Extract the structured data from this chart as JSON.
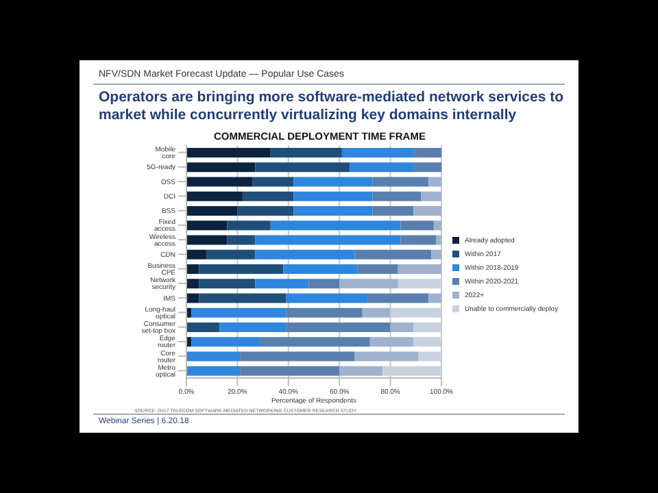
{
  "chart_data": {
    "type": "bar",
    "orientation": "horizontal",
    "stacked": true,
    "subtitle": "NFV/SDN Market Forecast Update — Popular Use Cases",
    "title": "COMMERCIAL DEPLOYMENT TIME FRAME",
    "annotations": [
      "Operators are bringing more software-mediated network services to market while concurrently virtualizing key domains internally",
      "SOURCE: 2H17 TELECOM SOFTWARE-MEDIATED NETWORKING CUSTOMER RESEARCH STUDY",
      "Webinar Series | 6.20.18"
    ],
    "xlabel": "Percentage of Respondents",
    "categories": [
      "Mobile core",
      "5G-ready",
      "OSS",
      "DCI",
      "BSS",
      "Fixed access",
      "Wireless access",
      "CDN",
      "Business CPE",
      "Network security",
      "IMS",
      "Long-haul optical",
      "Consumer set-top box",
      "Edge router",
      "Core router",
      "Metro optical"
    ],
    "series": [
      {
        "name": "Already adopted",
        "color": "#0c2340",
        "values": [
          33,
          27,
          26,
          22,
          20,
          16,
          16,
          8,
          5,
          5,
          5,
          2,
          0,
          2,
          0,
          0
        ]
      },
      {
        "name": "Within 2017",
        "color": "#1f4e79",
        "values": [
          28,
          37,
          16,
          20,
          22,
          17,
          11,
          19,
          33,
          22,
          34,
          0,
          13,
          0,
          0,
          0
        ]
      },
      {
        "name": "Within 2018-2019",
        "color": "#2e86de",
        "values": [
          28,
          25,
          31,
          31,
          31,
          51,
          57,
          39,
          29,
          21,
          32,
          37,
          26,
          27,
          21,
          21
        ]
      },
      {
        "name": "Within 2020-2021",
        "color": "#5a7fae",
        "values": [
          11,
          11,
          22,
          19,
          16,
          13,
          14,
          30,
          16,
          12,
          24,
          30,
          41,
          43,
          45,
          39
        ]
      },
      {
        "name": "2022+",
        "color": "#9fb2cd",
        "values": [
          0,
          0,
          5,
          8,
          11,
          3,
          2,
          4,
          17,
          23,
          5,
          11,
          9,
          17,
          25,
          17
        ]
      },
      {
        "name": "Unable to commercially deploy",
        "color": "#c8d2df",
        "values": [
          0,
          0,
          0,
          0,
          0,
          0,
          0,
          0,
          0,
          17,
          0,
          20,
          11,
          11,
          9,
          23
        ]
      }
    ],
    "xlim": [
      0,
      100
    ],
    "xticks": [
      {
        "value": 0,
        "label": "0.0%"
      },
      {
        "value": 20,
        "label": "20.0%"
      },
      {
        "value": 40,
        "label": "40.0%"
      },
      {
        "value": 60,
        "label": "60.0%"
      },
      {
        "value": 80,
        "label": "80.0%"
      },
      {
        "value": 100,
        "label": "100.0%"
      }
    ],
    "grid": "x",
    "legend": "right"
  }
}
